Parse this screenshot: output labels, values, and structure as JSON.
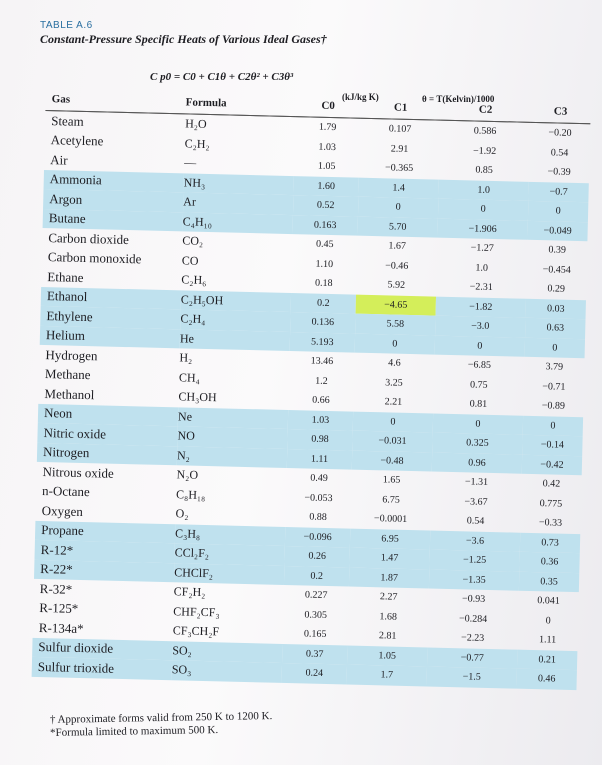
{
  "header": {
    "table_tag": "TABLE A.6",
    "title": "Constant-Pressure Specific Heats of Various Ideal Gases†",
    "equation": "C p0 = C0 + C1θ + C2θ² + C3θ³",
    "units": "(kJ/kg K)",
    "theta_def": "θ = T(Kelvin)/1000"
  },
  "columns": [
    "Gas",
    "Formula",
    "C0",
    "C1",
    "C2",
    "C3"
  ],
  "rows": [
    {
      "gas": "Steam",
      "formula": "H₂O",
      "c0": "1.79",
      "c1": "0.107",
      "c2": "0.586",
      "c3": "−0.20",
      "shade": false
    },
    {
      "gas": "Acetylene",
      "formula": "C₂H₂",
      "c0": "1.03",
      "c1": "2.91",
      "c2": "−1.92",
      "c3": "0.54",
      "shade": false
    },
    {
      "gas": "Air",
      "formula": "—",
      "c0": "1.05",
      "c1": "−0.365",
      "c2": "0.85",
      "c3": "−0.39",
      "shade": false
    },
    {
      "gas": "Ammonia",
      "formula": "NH₃",
      "c0": "1.60",
      "c1": "1.4",
      "c2": "1.0",
      "c3": "−0.7",
      "shade": true
    },
    {
      "gas": "Argon",
      "formula": "Ar",
      "c0": "0.52",
      "c1": "0",
      "c2": "0",
      "c3": "0",
      "shade": true
    },
    {
      "gas": "Butane",
      "formula": "C₄H₁₀",
      "c0": "0.163",
      "c1": "5.70",
      "c2": "−1.906",
      "c3": "−0.049",
      "shade": true
    },
    {
      "gas": "Carbon dioxide",
      "formula": "CO₂",
      "c0": "0.45",
      "c1": "1.67",
      "c2": "−1.27",
      "c3": "0.39",
      "shade": false
    },
    {
      "gas": "Carbon monoxide",
      "formula": "CO",
      "c0": "1.10",
      "c1": "−0.46",
      "c2": "1.0",
      "c3": "−0.454",
      "shade": false
    },
    {
      "gas": "Ethane",
      "formula": "C₂H₆",
      "c0": "0.18",
      "c1": "5.92",
      "c2": "−2.31",
      "c3": "0.29",
      "shade": false
    },
    {
      "gas": "Ethanol",
      "formula": "C₂H₅OH",
      "c0": "0.2",
      "c1": "−4.65",
      "c2": "−1.82",
      "c3": "0.03",
      "shade": true
    },
    {
      "gas": "Ethylene",
      "formula": "C₂H₄",
      "c0": "0.136",
      "c1": "5.58",
      "c2": "−3.0",
      "c3": "0.63",
      "shade": true
    },
    {
      "gas": "Helium",
      "formula": "He",
      "c0": "5.193",
      "c1": "0",
      "c2": "0",
      "c3": "0",
      "shade": true
    },
    {
      "gas": "Hydrogen",
      "formula": "H₂",
      "c0": "13.46",
      "c1": "4.6",
      "c2": "−6.85",
      "c3": "3.79",
      "shade": false
    },
    {
      "gas": "Methane",
      "formula": "CH₄",
      "c0": "1.2",
      "c1": "3.25",
      "c2": "0.75",
      "c3": "−0.71",
      "shade": false
    },
    {
      "gas": "Methanol",
      "formula": "CH₃OH",
      "c0": "0.66",
      "c1": "2.21",
      "c2": "0.81",
      "c3": "−0.89",
      "shade": false
    },
    {
      "gas": "Neon",
      "formula": "Ne",
      "c0": "1.03",
      "c1": "0",
      "c2": "0",
      "c3": "0",
      "shade": true
    },
    {
      "gas": "Nitric oxide",
      "formula": "NO",
      "c0": "0.98",
      "c1": "−0.031",
      "c2": "0.325",
      "c3": "−0.14",
      "shade": true
    },
    {
      "gas": "Nitrogen",
      "formula": "N₂",
      "c0": "1.11",
      "c1": "−0.48",
      "c2": "0.96",
      "c3": "−0.42",
      "shade": true
    },
    {
      "gas": "Nitrous oxide",
      "formula": "N₂O",
      "c0": "0.49",
      "c1": "1.65",
      "c2": "−1.31",
      "c3": "0.42",
      "shade": false
    },
    {
      "gas": "n-Octane",
      "formula": "C₈H₁₈",
      "c0": "−0.053",
      "c1": "6.75",
      "c2": "−3.67",
      "c3": "0.775",
      "shade": false
    },
    {
      "gas": "Oxygen",
      "formula": "O₂",
      "c0": "0.88",
      "c1": "−0.0001",
      "c2": "0.54",
      "c3": "−0.33",
      "shade": false
    },
    {
      "gas": "Propane",
      "formula": "C₃H₈",
      "c0": "−0.096",
      "c1": "6.95",
      "c2": "−3.6",
      "c3": "0.73",
      "shade": true
    },
    {
      "gas": "R-12*",
      "formula": "CCl₂F₂",
      "c0": "0.26",
      "c1": "1.47",
      "c2": "−1.25",
      "c3": "0.36",
      "shade": true
    },
    {
      "gas": "R-22*",
      "formula": "CHClF₂",
      "c0": "0.2",
      "c1": "1.87",
      "c2": "−1.35",
      "c3": "0.35",
      "shade": true
    },
    {
      "gas": "R-32*",
      "formula": "CF₂H₂",
      "c0": "0.227",
      "c1": "2.27",
      "c2": "−0.93",
      "c3": "0.041",
      "shade": false
    },
    {
      "gas": "R-125*",
      "formula": "CHF₂CF₃",
      "c0": "0.305",
      "c1": "1.68",
      "c2": "−0.284",
      "c3": "0",
      "shade": false
    },
    {
      "gas": "R-134a*",
      "formula": "CF₃CH₂F",
      "c0": "0.165",
      "c1": "2.81",
      "c2": "−2.23",
      "c3": "1.11",
      "shade": false
    },
    {
      "gas": "Sulfur dioxide",
      "formula": "SO₂",
      "c0": "0.37",
      "c1": "1.05",
      "c2": "−0.77",
      "c3": "0.21",
      "shade": true
    },
    {
      "gas": "Sulfur trioxide",
      "formula": "SO₃",
      "c0": "0.24",
      "c1": "1.7",
      "c2": "−1.5",
      "c3": "0.46",
      "shade": true
    }
  ],
  "highlight": {
    "row": 9,
    "col": "c1",
    "color": "#d4ee5a"
  },
  "shade_color": "#bfe1ee",
  "footnotes": [
    "† Approximate forms valid from 250 K to 1200 K.",
    "*Formula limited to maximum 500 K."
  ]
}
